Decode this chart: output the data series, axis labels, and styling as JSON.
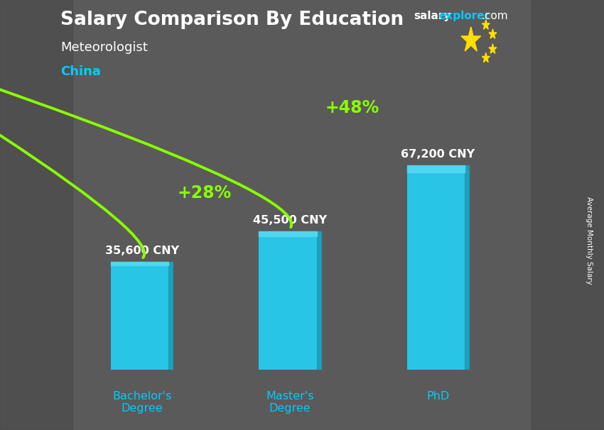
{
  "title": "Salary Comparison By Education",
  "subtitle": "Meteorologist",
  "country": "China",
  "categories": [
    "Bachelor's\nDegree",
    "Master's\nDegree",
    "PhD"
  ],
  "values": [
    35600,
    45500,
    67200
  ],
  "value_labels": [
    "35,600 CNY",
    "45,500 CNY",
    "67,200 CNY"
  ],
  "bar_color_main": "#29C5E6",
  "bar_color_light": "#55D8F0",
  "bar_color_dark": "#1A9BB5",
  "pct_labels": [
    "+28%",
    "+48%"
  ],
  "pct_color": "#88FF00",
  "arrow_color": "#88FF00",
  "bg_color": "#5a5a5a",
  "bg_left_color": "#484848",
  "bg_right_color": "#484848",
  "title_color": "#FFFFFF",
  "subtitle_color": "#FFFFFF",
  "country_color": "#00CCFF",
  "value_label_color": "#FFFFFF",
  "cat_label_color": "#00CCFF",
  "watermark_salary": "salary",
  "watermark_explorer": "explorer",
  "watermark_com": ".com",
  "watermark_salary_color": "#FFFFFF",
  "watermark_explorer_color": "#00CCFF",
  "watermark_com_color": "#FFFFFF",
  "ylabel_text": "Average Monthly Salary",
  "ylim": [
    0,
    82000
  ],
  "flag_red": "#DE2910",
  "flag_yellow": "#FFDE00",
  "bar_positions": [
    0,
    1,
    2
  ],
  "bar_width": 0.42
}
